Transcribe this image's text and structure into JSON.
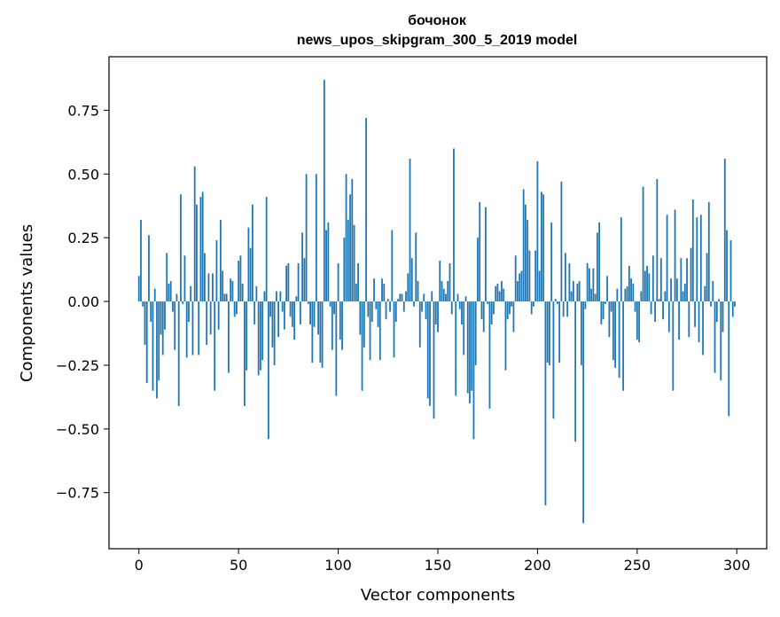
{
  "chart_data": {
    "type": "bar",
    "title_line1": "бочонок",
    "title_line2": "news_upos_skipgram_300_5_2019 model",
    "xlabel": "Vector components",
    "ylabel": "Components values",
    "xlim": [
      -15,
      315
    ],
    "ylim": [
      -0.97,
      0.96
    ],
    "x_ticks": [
      {
        "value": 0,
        "label": "0"
      },
      {
        "value": 50,
        "label": "50"
      },
      {
        "value": 100,
        "label": "100"
      },
      {
        "value": 150,
        "label": "150"
      },
      {
        "value": 200,
        "label": "200"
      },
      {
        "value": 250,
        "label": "250"
      },
      {
        "value": 300,
        "label": "300"
      }
    ],
    "y_ticks": [
      {
        "value": 0.75,
        "label": "0.75"
      },
      {
        "value": 0.5,
        "label": "0.50"
      },
      {
        "value": 0.25,
        "label": "0.25"
      },
      {
        "value": 0.0,
        "label": "0.00"
      },
      {
        "value": -0.25,
        "label": "−0.25"
      },
      {
        "value": -0.5,
        "label": "−0.50"
      },
      {
        "value": -0.75,
        "label": "−0.75"
      }
    ],
    "bar_color": "#1f77b4",
    "values": [
      0.1,
      0.32,
      -0.02,
      -0.17,
      -0.32,
      0.26,
      -0.08,
      -0.35,
      0.05,
      -0.38,
      -0.31,
      -0.13,
      -0.21,
      -0.11,
      0.19,
      0.07,
      0.08,
      -0.04,
      -0.19,
      0.03,
      -0.41,
      0.42,
      -0.01,
      0.18,
      -0.22,
      -0.08,
      0.06,
      -0.21,
      0.53,
      0.38,
      -0.21,
      0.41,
      0.43,
      0.19,
      -0.17,
      0.11,
      -0.13,
      0.11,
      -0.35,
      0.24,
      -0.11,
      0.32,
      0.12,
      0.03,
      0.03,
      -0.28,
      0.09,
      0.08,
      -0.06,
      -0.05,
      0.16,
      0.18,
      0.07,
      -0.41,
      -0.27,
      0.29,
      0.21,
      0.38,
      -0.09,
      0.06,
      -0.29,
      -0.27,
      -0.23,
      0.04,
      0.41,
      -0.54,
      -0.06,
      -0.18,
      -0.25,
      0.04,
      -0.14,
      0.04,
      -0.04,
      -0.11,
      0.14,
      0.15,
      -0.06,
      -0.1,
      -0.15,
      0.02,
      0.15,
      -0.09,
      0.27,
      0.17,
      0.5,
      -0.01,
      -0.09,
      -0.24,
      -0.1,
      0.5,
      -0.13,
      -0.24,
      -0.26,
      0.87,
      0.28,
      0.31,
      -0.02,
      -0.19,
      -0.05,
      -0.37,
      0.15,
      -0.15,
      -0.19,
      0.25,
      0.5,
      0.32,
      0.42,
      0.48,
      0.3,
      0.07,
      0.15,
      -0.13,
      -0.35,
      -0.18,
      0.72,
      -0.06,
      -0.23,
      -0.08,
      0.09,
      -0.03,
      -0.1,
      -0.23,
      0.09,
      0.07,
      -0.07,
      0.01,
      -0.04,
      0.28,
      -0.22,
      -0.08,
      0.01,
      0.03,
      0.03,
      -0.04,
      0.04,
      0.11,
      0.56,
      0.17,
      -0.02,
      0.27,
      0.08,
      -0.18,
      -0.04,
      0.03,
      -0.07,
      -0.38,
      -0.41,
      0.04,
      -0.46,
      -0.09,
      -0.12,
      0.16,
      0.08,
      0.05,
      0.03,
      0.08,
      0.15,
      -0.05,
      0.6,
      -0.37,
      0.03,
      -0.03,
      -0.09,
      -0.21,
      0.02,
      -0.36,
      -0.4,
      -0.35,
      -0.54,
      -0.25,
      0.25,
      0.39,
      -0.07,
      -0.12,
      0.37,
      -0.01,
      -0.42,
      -0.09,
      -0.05,
      0.06,
      0.07,
      0.04,
      0.08,
      0.05,
      -0.27,
      -0.07,
      -0.05,
      -0.02,
      -0.12,
      0.18,
      0.08,
      0.11,
      0.12,
      0.44,
      0.38,
      0.32,
      0.2,
      -0.05,
      -0.02,
      0.2,
      0.55,
      0.12,
      0.43,
      0.42,
      -0.8,
      -0.24,
      -0.25,
      0.31,
      -0.46,
      0.01,
      -0.01,
      -0.24,
      0.47,
      -0.06,
      0.19,
      -0.06,
      0.15,
      0.04,
      0.08,
      -0.55,
      0.07,
      0.08,
      -0.25,
      -0.87,
      -0.03,
      0.15,
      0.13,
      0.05,
      0.13,
      0.03,
      0.27,
      0.31,
      -0.09,
      -0.07,
      -0.01,
      0.1,
      -0.14,
      -0.04,
      -0.23,
      -0.26,
      0.05,
      -0.3,
      0.33,
      -0.35,
      0.05,
      0.06,
      0.14,
      0.09,
      0.07,
      -0.04,
      -0.15,
      -0.16,
      0.04,
      0.45,
      0.12,
      0.14,
      0.11,
      -0.05,
      0.18,
      -0.08,
      0.48,
      0.01,
      0.17,
      -0.07,
      0.04,
      0.34,
      -0.12,
      0.09,
      -0.35,
      0.36,
      0.09,
      -0.15,
      0.17,
      0.04,
      0.07,
      0.17,
      -0.14,
      0.21,
      0.4,
      -0.1,
      0.33,
      -0.16,
      0.34,
      -0.21,
      0.06,
      0.19,
      0.39,
      -0.02,
      0.08,
      -0.28,
      -0.08,
      0.01,
      -0.31,
      -0.12,
      0.56,
      0.28,
      -0.45,
      0.24,
      -0.06,
      -0.02
    ]
  }
}
